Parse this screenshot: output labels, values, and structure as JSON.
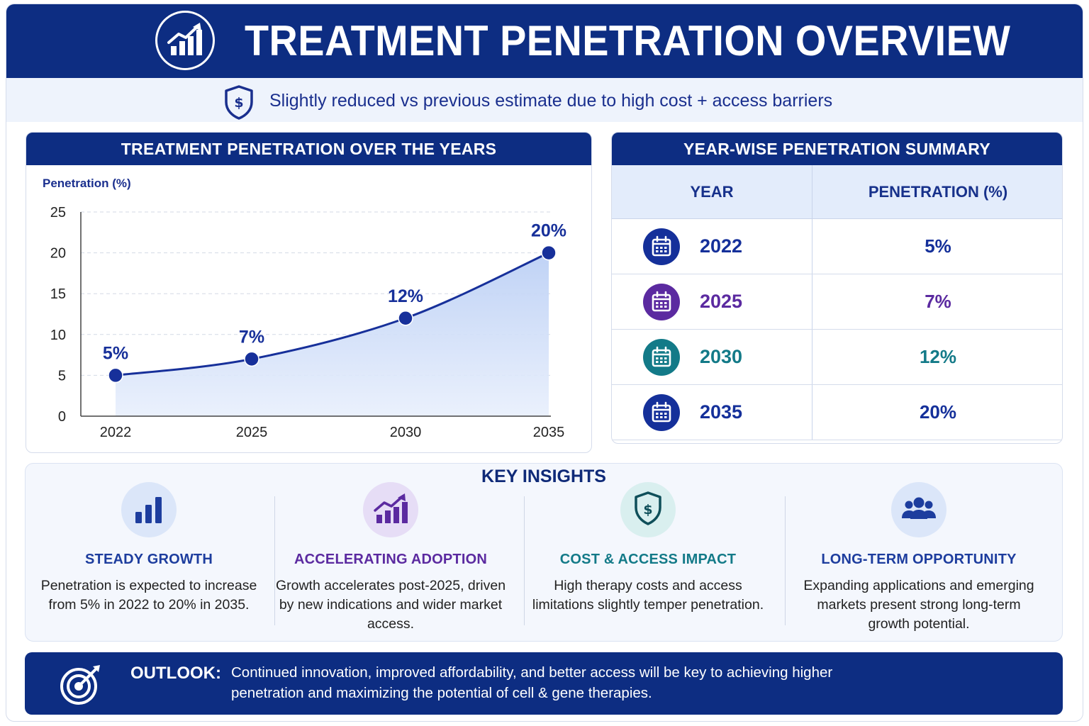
{
  "header": {
    "title": "TREATMENT PENETRATION OVERVIEW",
    "icon": "growth-chart-icon",
    "subtitle": "Slightly reduced vs previous estimate due to high cost + access barriers",
    "subtitle_icon": "shield-dollar-icon"
  },
  "chart_panel": {
    "title": "TREATMENT PENETRATION OVER THE YEARS"
  },
  "chart_data": {
    "type": "area",
    "title": "TREATMENT PENETRATION OVER THE YEARS",
    "xlabel": "",
    "ylabel": "Penetration (%)",
    "categories": [
      "2022",
      "2025",
      "2030",
      "2035"
    ],
    "series": [
      {
        "values": [
          5,
          7,
          12,
          20
        ],
        "data_labels": [
          "5%",
          "7%",
          "12%",
          "20%"
        ]
      }
    ],
    "y_ticks": [
      "0",
      "5",
      "10",
      "15",
      "20",
      "25"
    ],
    "ylim": [
      0,
      25
    ],
    "grid": true,
    "legend": "none",
    "colors": {
      "line": "#17309a",
      "fill": "#c6d6f6"
    }
  },
  "summary": {
    "title": "YEAR-WISE PENETRATION SUMMARY",
    "col_year": "YEAR",
    "col_pen": "PENETRATION (%)",
    "rows": [
      {
        "year": "2022",
        "value": "5%",
        "color": "#15309a",
        "icon": "calendar-icon"
      },
      {
        "year": "2025",
        "value": "7%",
        "color": "#5b2aa0",
        "icon": "calendar-icon"
      },
      {
        "year": "2030",
        "value": "12%",
        "color": "#137a88",
        "icon": "calendar-icon"
      },
      {
        "year": "2035",
        "value": "20%",
        "color": "#15309a",
        "icon": "calendar-icon"
      }
    ]
  },
  "insights": {
    "title": "KEY INSIGHTS",
    "items": [
      {
        "heading": "STEADY GROWTH",
        "text": "Penetration is expected to increase from 5% in 2022 to 20% in 2035.",
        "color": "#1d3d9e",
        "icon": "bar-chart-icon"
      },
      {
        "heading": "ACCELERATING ADOPTION",
        "text": "Growth accelerates post-2025, driven by new indications and wider market access.",
        "color": "#5b2aa0",
        "icon": "trend-up-icon"
      },
      {
        "heading": "COST & ACCESS IMPACT",
        "text": "High therapy costs and access limitations slightly temper penetration.",
        "color": "#137a88",
        "icon": "shield-dollar-icon"
      },
      {
        "heading": "LONG-TERM OPPORTUNITY",
        "text": "Expanding applications and emerging markets present strong long-term growth potential.",
        "color": "#1d3d9e",
        "icon": "people-group-icon"
      }
    ]
  },
  "outlook": {
    "label": "OUTLOOK:",
    "text": "Continued innovation, improved affordability, and better access will be key to achieving higher penetration and maximizing the potential of cell & gene therapies.",
    "icon": "target-icon"
  }
}
